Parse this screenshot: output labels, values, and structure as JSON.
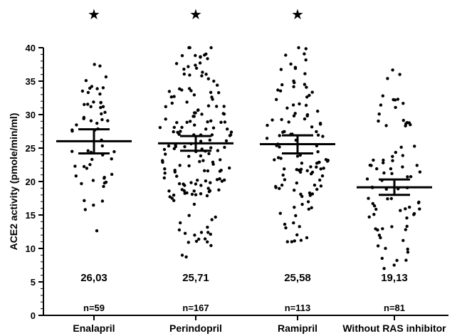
{
  "chart_data": {
    "type": "scatter",
    "subtype": "dot-plot-with-mean-and-ci",
    "ylabel": "ACE2 activity (pmole/min/ml)",
    "ylim": [
      0,
      40
    ],
    "y_ticks": [
      "0",
      "5",
      "10",
      "15",
      "20",
      "25",
      "30",
      "35",
      "40"
    ],
    "categories": [
      "Enalapril",
      "Perindopril",
      "Ramipril",
      "Without RAS inhibitor"
    ],
    "means": [
      26.03,
      25.71,
      25.58,
      19.13
    ],
    "mean_labels": [
      "26,03",
      "25,71",
      "25,58",
      "19,13"
    ],
    "ci_lower": [
      24.2,
      24.6,
      24.2,
      18.0
    ],
    "ci_upper": [
      27.8,
      26.8,
      26.9,
      20.3
    ],
    "n_labels": [
      "n=59",
      "n=167",
      "n=113",
      "n=81"
    ],
    "significance_marks": [
      "★",
      "★",
      "★",
      ""
    ],
    "grid": false,
    "point_color": "#000000"
  }
}
